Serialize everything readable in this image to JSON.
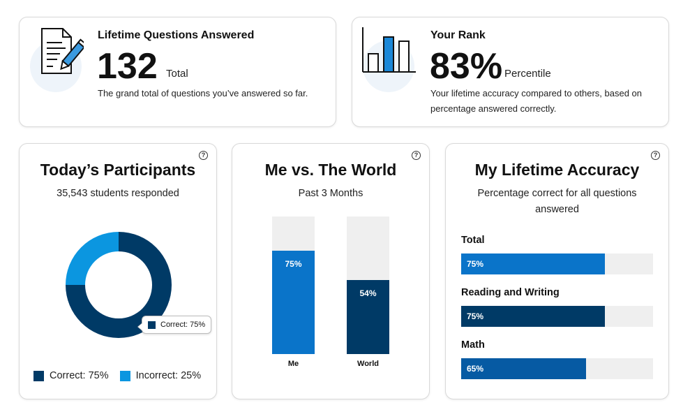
{
  "colors": {
    "dark_navy": "#003a66",
    "bright_blue": "#0a74c9",
    "mid_blue": "#065aa3",
    "light_blue": "#0b96e0",
    "track_gray": "#efefef"
  },
  "questions_card": {
    "title": "Lifetime Questions Answered",
    "value": "132",
    "suffix": "Total",
    "description": "The grand total of questions you’ve answered so far.",
    "icon": "document-pencil-icon"
  },
  "rank_card": {
    "title": "Your Rank",
    "value": "83%",
    "suffix": "Percentile",
    "description": "Your lifetime accuracy compared to others, based on percentage answered correctly.",
    "icon": "bar-chart-icon"
  },
  "participants_card": {
    "title": "Today’s Participants",
    "subtitle": "35,543 students responded",
    "help": "?",
    "tooltip": "Correct: 75%",
    "legend": [
      {
        "label": "Correct: 75%",
        "color": "#003a66"
      },
      {
        "label": "Incorrect: 25%",
        "color": "#0b96e0"
      }
    ]
  },
  "world_card": {
    "title": "Me vs. The World",
    "subtitle": "Past 3 Months",
    "help": "?"
  },
  "accuracy_card": {
    "title": "My Lifetime Accuracy",
    "subtitle": "Percentage correct for all questions answered",
    "help": "?",
    "rows": [
      {
        "label": "Total",
        "value": 75,
        "value_label": "75%",
        "color": "#0a74c9"
      },
      {
        "label": "Reading and Writing",
        "value": 75,
        "value_label": "75%",
        "color": "#003a66"
      },
      {
        "label": "Math",
        "value": 65,
        "value_label": "65%",
        "color": "#065aa3"
      }
    ]
  },
  "chart_data": [
    {
      "type": "pie",
      "title": "Today’s Participants",
      "subtitle": "35,543 students responded",
      "categories": [
        "Correct",
        "Incorrect"
      ],
      "values": [
        75,
        25
      ],
      "labels": [
        "Correct: 75%",
        "Incorrect: 25%"
      ],
      "donut": true
    },
    {
      "type": "bar",
      "title": "Me vs. The World",
      "subtitle": "Past 3 Months",
      "categories": [
        "Me",
        "World"
      ],
      "values": [
        75,
        54
      ],
      "value_labels": [
        "75%",
        "54%"
      ],
      "ylim": [
        0,
        100
      ],
      "colors": [
        "#0a74c9",
        "#003a66"
      ]
    },
    {
      "type": "bar",
      "orientation": "horizontal",
      "title": "My Lifetime Accuracy",
      "subtitle": "Percentage correct for all questions answered",
      "categories": [
        "Total",
        "Reading and Writing",
        "Math"
      ],
      "values": [
        75,
        75,
        65
      ],
      "xlim": [
        0,
        100
      ]
    }
  ]
}
